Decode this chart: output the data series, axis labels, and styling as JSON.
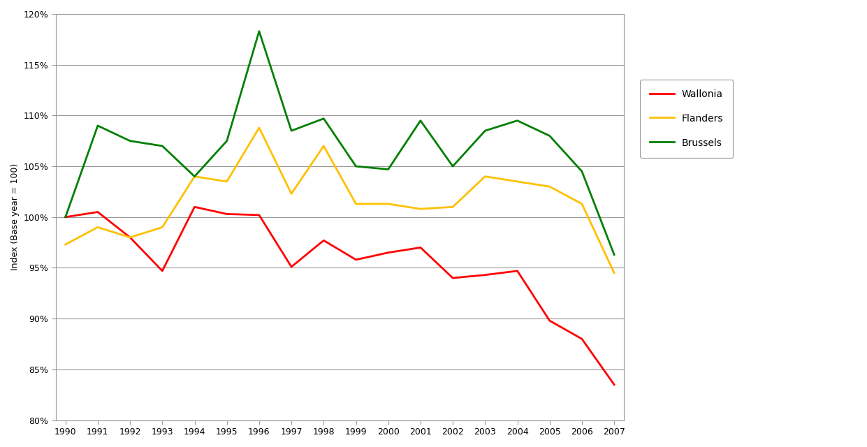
{
  "years": [
    1990,
    1991,
    1992,
    1993,
    1994,
    1995,
    1996,
    1997,
    1998,
    1999,
    2000,
    2001,
    2002,
    2003,
    2004,
    2005,
    2006,
    2007
  ],
  "wallonia": [
    100.0,
    100.5,
    98.0,
    94.7,
    101.0,
    100.3,
    100.2,
    95.1,
    97.7,
    95.8,
    96.5,
    97.0,
    94.0,
    94.3,
    94.7,
    89.8,
    88.0,
    83.5
  ],
  "flanders": [
    97.3,
    99.0,
    98.0,
    99.0,
    104.0,
    103.5,
    108.8,
    102.3,
    107.0,
    101.3,
    101.3,
    100.8,
    101.0,
    104.0,
    103.5,
    103.0,
    101.3,
    94.5
  ],
  "brussels": [
    100.0,
    109.0,
    107.5,
    107.0,
    104.0,
    107.5,
    118.3,
    108.5,
    109.7,
    105.0,
    104.7,
    109.5,
    105.0,
    108.5,
    109.5,
    108.0,
    104.5,
    96.3
  ],
  "wallonia_color": "#ff0000",
  "flanders_color": "#ffc000",
  "brussels_color": "#008000",
  "ylabel": "Index (Base year = 100)",
  "ylim": [
    80,
    120
  ],
  "yticks": [
    80,
    85,
    90,
    95,
    100,
    105,
    110,
    115,
    120
  ],
  "background_color": "#ffffff",
  "plot_bg_color": "#ffffff",
  "grid_color": "#999999",
  "spine_color": "#999999",
  "line_width": 2.0,
  "legend_labels": [
    "Wallonia",
    "Flanders",
    "Brussels"
  ],
  "tick_fontsize": 9,
  "ylabel_fontsize": 9
}
